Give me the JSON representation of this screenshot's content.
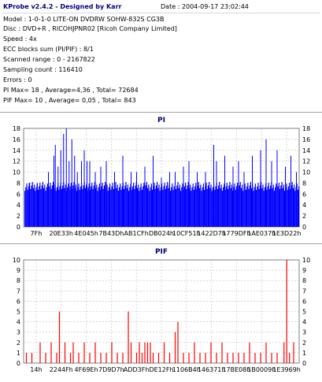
{
  "header": {
    "title": "KProbe v2.4.2 - Designed by Karr",
    "date": "Date : 2004-09-17 23:02:44"
  },
  "info_lines": [
    "Model : 1-0-1-0 LITE-ON DVDRW SOHW-832S  CG3B",
    "Disc : DVD+R , RICOHJPNR02 [Ricoh Company Limited]",
    "Speed : 4x",
    "ECC blocks sum (PI/PIF) : 8/1",
    "Scanned range : 0 - 2167822",
    "Sampling count : 116410",
    "Errors : 0",
    "PI Max= 18 , Average=4,36 , Total= 72684",
    "PIF Max= 10 , Average= 0,05 , Total= 843"
  ],
  "colors": {
    "pi_fill": "#0000ff",
    "pif_bar": "#ff0000",
    "title": "#000080",
    "grid": "#c0c0c0"
  },
  "chart_data": [
    {
      "type": "bar",
      "title": "PI",
      "x_tick_labels": [
        "7Fh",
        "20E33h",
        "4E045h",
        "7B43Dh",
        "AB1CFh",
        "DB024h",
        "10CF51h",
        "1422D7h",
        "1779DFh",
        "1AE037h",
        "1E3D22h"
      ],
      "ylim": [
        0,
        18
      ],
      "yticks": [
        0,
        2,
        4,
        6,
        8,
        10,
        12,
        14,
        16,
        18
      ],
      "grid": true,
      "baseline_value": 7,
      "spikes": [
        {
          "x": 0.02,
          "y": 8
        },
        {
          "x": 0.05,
          "y": 8
        },
        {
          "x": 0.09,
          "y": 10
        },
        {
          "x": 0.11,
          "y": 13
        },
        {
          "x": 0.115,
          "y": 15
        },
        {
          "x": 0.125,
          "y": 11
        },
        {
          "x": 0.135,
          "y": 14
        },
        {
          "x": 0.145,
          "y": 17
        },
        {
          "x": 0.155,
          "y": 18
        },
        {
          "x": 0.165,
          "y": 12
        },
        {
          "x": 0.175,
          "y": 16
        },
        {
          "x": 0.185,
          "y": 13
        },
        {
          "x": 0.195,
          "y": 10
        },
        {
          "x": 0.21,
          "y": 12
        },
        {
          "x": 0.22,
          "y": 14
        },
        {
          "x": 0.23,
          "y": 12
        },
        {
          "x": 0.24,
          "y": 12
        },
        {
          "x": 0.26,
          "y": 10
        },
        {
          "x": 0.28,
          "y": 11
        },
        {
          "x": 0.3,
          "y": 12
        },
        {
          "x": 0.33,
          "y": 10
        },
        {
          "x": 0.36,
          "y": 13
        },
        {
          "x": 0.39,
          "y": 10
        },
        {
          "x": 0.41,
          "y": 10
        },
        {
          "x": 0.44,
          "y": 11
        },
        {
          "x": 0.47,
          "y": 13
        },
        {
          "x": 0.5,
          "y": 9
        },
        {
          "x": 0.53,
          "y": 10
        },
        {
          "x": 0.55,
          "y": 10
        },
        {
          "x": 0.58,
          "y": 11
        },
        {
          "x": 0.6,
          "y": 12
        },
        {
          "x": 0.63,
          "y": 10
        },
        {
          "x": 0.66,
          "y": 10
        },
        {
          "x": 0.69,
          "y": 15
        },
        {
          "x": 0.7,
          "y": 12
        },
        {
          "x": 0.73,
          "y": 13
        },
        {
          "x": 0.76,
          "y": 11
        },
        {
          "x": 0.78,
          "y": 12
        },
        {
          "x": 0.8,
          "y": 10
        },
        {
          "x": 0.83,
          "y": 13
        },
        {
          "x": 0.86,
          "y": 14
        },
        {
          "x": 0.88,
          "y": 16
        },
        {
          "x": 0.9,
          "y": 12
        },
        {
          "x": 0.92,
          "y": 14
        },
        {
          "x": 0.95,
          "y": 11
        },
        {
          "x": 0.97,
          "y": 13
        },
        {
          "x": 0.99,
          "y": 10
        }
      ]
    },
    {
      "type": "bar",
      "title": "PIF",
      "x_tick_labels": [
        "14h",
        "2244Fh",
        "4F69Eh",
        "7D9D7h",
        "ADD3Fh",
        "DE12Fh",
        "1106B4h",
        "146371h",
        "17BE08h",
        "1B0009h",
        "1E3969h"
      ],
      "ylim": [
        0,
        10
      ],
      "yticks": [
        0,
        1,
        2,
        3,
        4,
        5,
        6,
        7,
        8,
        9,
        10
      ],
      "grid": true,
      "bars": [
        {
          "x": 0.01,
          "y": 1
        },
        {
          "x": 0.03,
          "y": 1
        },
        {
          "x": 0.06,
          "y": 2
        },
        {
          "x": 0.08,
          "y": 1
        },
        {
          "x": 0.1,
          "y": 2
        },
        {
          "x": 0.12,
          "y": 1
        },
        {
          "x": 0.13,
          "y": 5
        },
        {
          "x": 0.15,
          "y": 2
        },
        {
          "x": 0.17,
          "y": 1
        },
        {
          "x": 0.18,
          "y": 2
        },
        {
          "x": 0.2,
          "y": 1
        },
        {
          "x": 0.22,
          "y": 2
        },
        {
          "x": 0.24,
          "y": 1
        },
        {
          "x": 0.26,
          "y": 2
        },
        {
          "x": 0.28,
          "y": 1
        },
        {
          "x": 0.3,
          "y": 1
        },
        {
          "x": 0.32,
          "y": 2
        },
        {
          "x": 0.34,
          "y": 1
        },
        {
          "x": 0.36,
          "y": 1
        },
        {
          "x": 0.38,
          "y": 5
        },
        {
          "x": 0.39,
          "y": 2
        },
        {
          "x": 0.41,
          "y": 1
        },
        {
          "x": 0.42,
          "y": 2
        },
        {
          "x": 0.43,
          "y": 1
        },
        {
          "x": 0.44,
          "y": 2
        },
        {
          "x": 0.45,
          "y": 2
        },
        {
          "x": 0.46,
          "y": 2
        },
        {
          "x": 0.47,
          "y": 1
        },
        {
          "x": 0.49,
          "y": 1
        },
        {
          "x": 0.51,
          "y": 2
        },
        {
          "x": 0.53,
          "y": 1
        },
        {
          "x": 0.55,
          "y": 3
        },
        {
          "x": 0.56,
          "y": 4
        },
        {
          "x": 0.58,
          "y": 1
        },
        {
          "x": 0.6,
          "y": 1
        },
        {
          "x": 0.62,
          "y": 2
        },
        {
          "x": 0.64,
          "y": 1
        },
        {
          "x": 0.66,
          "y": 1
        },
        {
          "x": 0.68,
          "y": 2
        },
        {
          "x": 0.7,
          "y": 1
        },
        {
          "x": 0.72,
          "y": 2
        },
        {
          "x": 0.74,
          "y": 1
        },
        {
          "x": 0.76,
          "y": 1
        },
        {
          "x": 0.78,
          "y": 1
        },
        {
          "x": 0.8,
          "y": 1
        },
        {
          "x": 0.82,
          "y": 2
        },
        {
          "x": 0.84,
          "y": 1
        },
        {
          "x": 0.86,
          "y": 1
        },
        {
          "x": 0.88,
          "y": 2
        },
        {
          "x": 0.9,
          "y": 1
        },
        {
          "x": 0.92,
          "y": 1
        },
        {
          "x": 0.945,
          "y": 2
        },
        {
          "x": 0.955,
          "y": 10
        },
        {
          "x": 0.965,
          "y": 1
        },
        {
          "x": 0.98,
          "y": 2
        }
      ]
    }
  ]
}
